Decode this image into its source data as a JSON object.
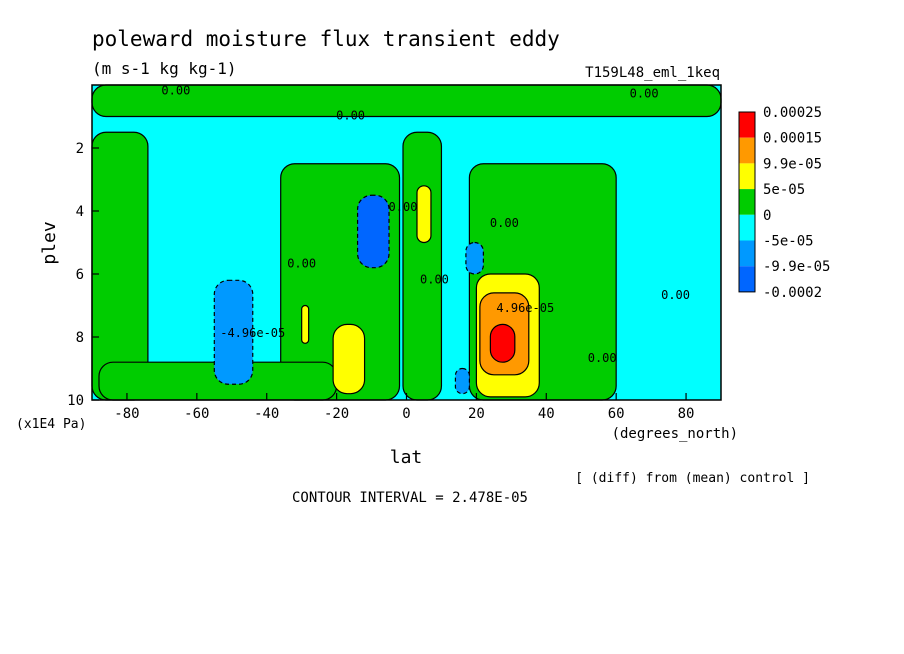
{
  "chart_data": {
    "type": "heatmap",
    "title": "poleward moisture flux transient eddy",
    "units": "(m s-1 kg kg-1)",
    "run_label": "T159L48_eml_1keq",
    "xlabel": "lat",
    "x_units": "(degrees_north)",
    "ylabel": "plev",
    "y_units": "(x1E4 Pa)",
    "xlim": [
      -90,
      90
    ],
    "ylim": [
      10,
      0
    ],
    "x_ticks": [
      -80,
      -60,
      -40,
      -20,
      0,
      20,
      40,
      60,
      80
    ],
    "y_ticks": [
      2,
      4,
      6,
      8,
      10
    ],
    "contour_interval_text": "CONTOUR INTERVAL = 2.478E-05",
    "note": "[ (diff) from (mean) control ]",
    "legend": {
      "labels": [
        "0.00025",
        "0.00015",
        "9.9e-05",
        "5e-05",
        "0",
        "-5e-05",
        "-9.9e-05",
        "-0.0002"
      ],
      "colors": [
        "#ff0000",
        "#ff9900",
        "#ffff00",
        "#00cc00",
        "#00ffff",
        "#0099ff",
        "#0066ff"
      ]
    },
    "contour_labels": [
      {
        "text": "0.00",
        "x": -66,
        "y": 0.3
      },
      {
        "text": "0.00",
        "x": -16,
        "y": 1.1
      },
      {
        "text": "0.00",
        "x": 68,
        "y": 0.4
      },
      {
        "text": "0.00",
        "x": -30,
        "y": 5.8
      },
      {
        "text": "0.00",
        "x": -1,
        "y": 4.0
      },
      {
        "text": "0.00",
        "x": 8,
        "y": 6.3
      },
      {
        "text": "0.00",
        "x": 28,
        "y": 4.5
      },
      {
        "text": "0.00",
        "x": 77,
        "y": 6.8
      },
      {
        "text": "0.00",
        "x": 56,
        "y": 8.8
      },
      {
        "text": "-4.96e-05",
        "x": -44,
        "y": 8.0
      },
      {
        "text": "4.96e-05",
        "x": 34,
        "y": 7.2
      }
    ],
    "features": [
      {
        "value": 0.0,
        "lat": [
          -90,
          -74
        ],
        "plev": [
          1.5,
          10
        ]
      },
      {
        "value": 0.0,
        "lat": [
          -36,
          -2
        ],
        "plev": [
          2.5,
          10
        ]
      },
      {
        "value": 0.0,
        "lat": [
          -1,
          10
        ],
        "plev": [
          1.5,
          10
        ]
      },
      {
        "value": 0.0,
        "lat": [
          18,
          60
        ],
        "plev": [
          2.5,
          10
        ]
      },
      {
        "value": 0.0,
        "lat": [
          -90,
          90
        ],
        "plev": [
          0,
          1.0
        ]
      },
      {
        "value": 0.0,
        "lat": [
          -88,
          -20
        ],
        "plev": [
          8.8,
          10
        ]
      },
      {
        "value": -7e-05,
        "lat": [
          -55,
          -44
        ],
        "plev": [
          6.2,
          9.5
        ]
      },
      {
        "value": -0.0001,
        "lat": [
          -14,
          -5
        ],
        "plev": [
          3.5,
          5.8
        ]
      },
      {
        "value": -6e-05,
        "lat": [
          17,
          22
        ],
        "plev": [
          5.0,
          6.0
        ]
      },
      {
        "value": -6e-05,
        "lat": [
          14,
          18
        ],
        "plev": [
          9.0,
          9.8
        ]
      },
      {
        "value": 7e-05,
        "lat": [
          -21,
          -12
        ],
        "plev": [
          7.6,
          9.8
        ]
      },
      {
        "value": 7e-05,
        "lat": [
          -30,
          -28
        ],
        "plev": [
          7.0,
          8.2
        ]
      },
      {
        "value": 6e-05,
        "lat": [
          3,
          7
        ],
        "plev": [
          3.2,
          5.0
        ]
      },
      {
        "value": 7e-05,
        "lat": [
          20,
          38
        ],
        "plev": [
          6.0,
          9.9
        ]
      },
      {
        "value": 0.00012,
        "lat": [
          21,
          35
        ],
        "plev": [
          6.6,
          9.2
        ]
      },
      {
        "value": 0.0002,
        "lat": [
          24,
          31
        ],
        "plev": [
          7.6,
          8.8
        ]
      }
    ]
  }
}
